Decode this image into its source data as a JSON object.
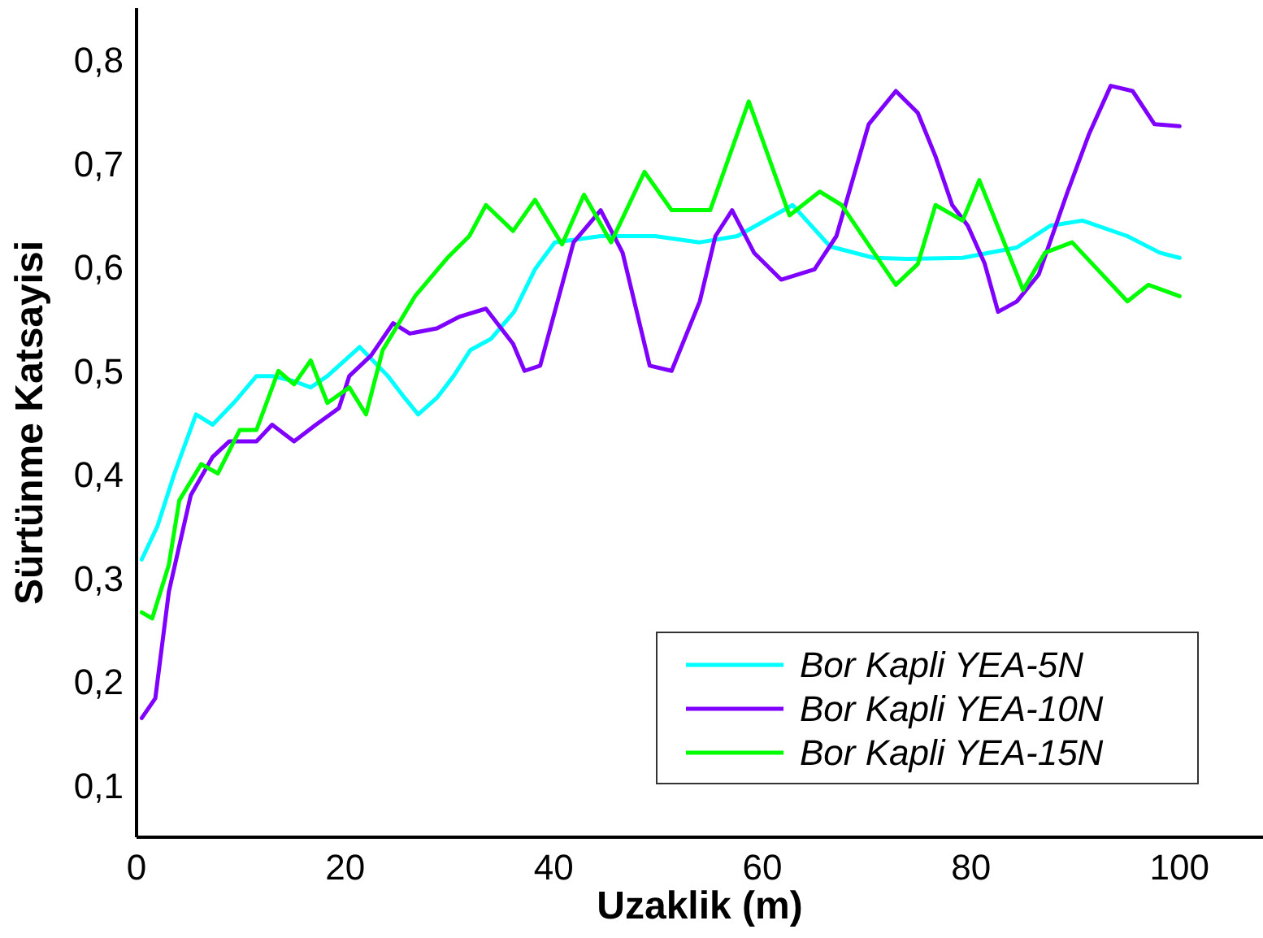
{
  "chart_data": {
    "type": "line",
    "xlabel": "Uzaklik (m)",
    "ylabel": "Sürtünme Katsayisi",
    "xlim": [
      0,
      108
    ],
    "ylim": [
      0.05,
      0.85
    ],
    "xticks": [
      0,
      20,
      40,
      60,
      80,
      100
    ],
    "yticks": [
      {
        "value": 0.1,
        "label": "0,1"
      },
      {
        "value": 0.2,
        "label": "0,2"
      },
      {
        "value": 0.3,
        "label": "0,3"
      },
      {
        "value": 0.4,
        "label": "0,4"
      },
      {
        "value": 0.5,
        "label": "0,5"
      },
      {
        "value": 0.6,
        "label": "0,6"
      },
      {
        "value": 0.7,
        "label": "0,7"
      },
      {
        "value": 0.8,
        "label": "0,8"
      }
    ],
    "grid": false,
    "legend": "bottom right",
    "line_style": "solid",
    "series": [
      {
        "name": "Bor Kapli YEA-5N",
        "color": "#00ffff",
        "x": [
          0.5,
          2,
          3.6,
          5.7,
          7.3,
          9.4,
          11.5,
          13,
          15.1,
          16.7,
          18.3,
          21.4,
          24.1,
          25.7,
          27,
          28.8,
          30.4,
          32,
          34,
          36.2,
          38.2,
          40.1,
          44.5,
          49.7,
          54,
          57.6,
          62.9,
          66.5,
          70.7,
          73.9,
          79.2,
          84.4,
          87.6,
          90.7,
          95,
          98.1,
          100
        ],
        "values": [
          0.318,
          0.35,
          0.4,
          0.458,
          0.448,
          0.47,
          0.495,
          0.495,
          0.49,
          0.484,
          0.495,
          0.523,
          0.495,
          0.474,
          0.458,
          0.474,
          0.495,
          0.52,
          0.531,
          0.557,
          0.598,
          0.624,
          0.63,
          0.63,
          0.624,
          0.63,
          0.66,
          0.62,
          0.609,
          0.608,
          0.609,
          0.619,
          0.64,
          0.645,
          0.63,
          0.614,
          0.609
        ]
      },
      {
        "name": "Bor Kapli YEA-10N",
        "color": "#7f00ff",
        "x": [
          0.5,
          1.8,
          3.1,
          5.2,
          7.3,
          8.9,
          11.5,
          13,
          15.1,
          17.2,
          19.4,
          20.4,
          22.5,
          24.6,
          26.2,
          28.8,
          30.9,
          33.5,
          36.1,
          37.2,
          38.7,
          41.9,
          44.5,
          46.6,
          49.2,
          51.3,
          54,
          55.5,
          57.1,
          59.2,
          61.8,
          65,
          67.1,
          70.2,
          72.8,
          74.9,
          76.6,
          78.2,
          79.7,
          81.3,
          82.6,
          84.4,
          86.5,
          89.2,
          91.3,
          93.4,
          95.5,
          97.6,
          100
        ],
        "values": [
          0.165,
          0.184,
          0.287,
          0.38,
          0.417,
          0.432,
          0.432,
          0.448,
          0.432,
          0.448,
          0.464,
          0.495,
          0.515,
          0.546,
          0.536,
          0.541,
          0.552,
          0.56,
          0.526,
          0.5,
          0.505,
          0.624,
          0.655,
          0.614,
          0.505,
          0.5,
          0.567,
          0.63,
          0.655,
          0.614,
          0.588,
          0.598,
          0.63,
          0.738,
          0.77,
          0.749,
          0.707,
          0.66,
          0.64,
          0.604,
          0.557,
          0.567,
          0.593,
          0.671,
          0.728,
          0.775,
          0.77,
          0.738,
          0.736
        ]
      },
      {
        "name": "Bor Kapli YEA-15N",
        "color": "#00ff00",
        "x": [
          0.5,
          1.5,
          3.1,
          4.1,
          6.2,
          7.8,
          9.9,
          11.5,
          13.6,
          15.1,
          16.7,
          18.3,
          20.4,
          22,
          23.6,
          26.7,
          29.8,
          31.9,
          33.5,
          36.1,
          38.2,
          40.8,
          42.9,
          45.5,
          48.7,
          51.3,
          55,
          58.7,
          62.6,
          65.5,
          67.6,
          70.7,
          72.8,
          74.9,
          76.6,
          79.2,
          80.8,
          85,
          87.1,
          89.7,
          95,
          97,
          100
        ],
        "values": [
          0.267,
          0.261,
          0.313,
          0.375,
          0.41,
          0.401,
          0.443,
          0.443,
          0.5,
          0.487,
          0.51,
          0.469,
          0.484,
          0.458,
          0.52,
          0.572,
          0.609,
          0.63,
          0.66,
          0.635,
          0.665,
          0.622,
          0.67,
          0.624,
          0.692,
          0.655,
          0.655,
          0.76,
          0.65,
          0.673,
          0.66,
          0.614,
          0.583,
          0.603,
          0.66,
          0.645,
          0.684,
          0.578,
          0.614,
          0.624,
          0.567,
          0.583,
          0.572
        ]
      }
    ]
  }
}
